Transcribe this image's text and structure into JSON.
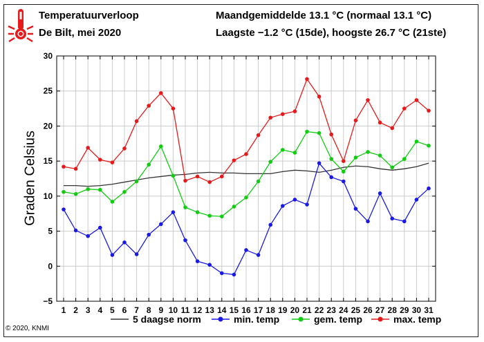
{
  "header": {
    "title": "Temperatuurverloop",
    "subtitle": "De Bilt, mei 2020",
    "summary_mean": "Maandgemiddelde 13.1 °C (normaal 13.1 °C)",
    "summary_extremes": "Laagste −1.2 °C (15de), hoogste 26.7 °C (21ste)"
  },
  "footer": {
    "copyright": "© 2020, KNMI"
  },
  "icons": {
    "logo": "thermometer-icon"
  },
  "colors": {
    "min": "#1a1ae6",
    "gem": "#12cc12",
    "max": "#e61a1a",
    "norm": "#333333",
    "grid": "#cccccc"
  },
  "chart_data": {
    "type": "line",
    "ylabel": "Graden Celsius",
    "xlabel": "",
    "ylim": [
      -5,
      30
    ],
    "yticks": [
      -5,
      0,
      5,
      10,
      15,
      20,
      25,
      30
    ],
    "grid": true,
    "legend_position": "bottom",
    "categories": [
      1,
      2,
      3,
      4,
      5,
      6,
      7,
      8,
      9,
      10,
      11,
      12,
      13,
      14,
      15,
      16,
      17,
      18,
      19,
      20,
      21,
      22,
      23,
      24,
      25,
      26,
      27,
      28,
      29,
      30,
      31
    ],
    "series": [
      {
        "name": "5 daagse norm",
        "color": "#333333",
        "marker": false,
        "values": [
          11.5,
          11.5,
          11.4,
          11.5,
          11.7,
          12.0,
          12.3,
          12.6,
          12.8,
          13.0,
          13.1,
          13.3,
          13.4,
          13.3,
          13.3,
          13.2,
          13.2,
          13.2,
          13.5,
          13.7,
          13.6,
          13.4,
          13.7,
          14.1,
          14.3,
          14.2,
          13.9,
          13.7,
          13.9,
          14.2,
          14.7
        ]
      },
      {
        "name": "min. temp",
        "color": "#1a1ae6",
        "marker": true,
        "values": [
          8.1,
          5.1,
          4.3,
          5.5,
          1.6,
          3.4,
          1.7,
          4.5,
          6.0,
          7.7,
          3.7,
          0.7,
          0.2,
          -1.0,
          -1.2,
          2.3,
          1.6,
          5.9,
          8.6,
          9.5,
          8.8,
          14.7,
          12.7,
          12.1,
          8.2,
          6.4,
          10.4,
          6.8,
          6.4,
          9.5,
          11.1
        ]
      },
      {
        "name": "gem. temp",
        "color": "#12cc12",
        "marker": true,
        "values": [
          10.6,
          10.3,
          11.0,
          10.9,
          9.2,
          10.6,
          12.1,
          14.5,
          17.1,
          12.9,
          8.4,
          7.7,
          7.2,
          7.1,
          8.5,
          9.8,
          12.1,
          14.9,
          16.6,
          16.2,
          19.2,
          19.0,
          15.3,
          13.5,
          15.5,
          16.3,
          15.8,
          14.1,
          15.3,
          17.8,
          17.2
        ]
      },
      {
        "name": "max. temp",
        "color": "#e61a1a",
        "marker": true,
        "values": [
          14.2,
          13.9,
          16.9,
          15.2,
          14.8,
          16.8,
          20.7,
          22.9,
          24.7,
          22.5,
          12.2,
          12.8,
          12.0,
          12.8,
          15.1,
          16.0,
          18.7,
          21.2,
          21.7,
          22.1,
          26.7,
          24.2,
          18.8,
          15.0,
          20.8,
          23.7,
          20.5,
          19.7,
          22.5,
          23.7,
          22.2
        ]
      }
    ]
  }
}
